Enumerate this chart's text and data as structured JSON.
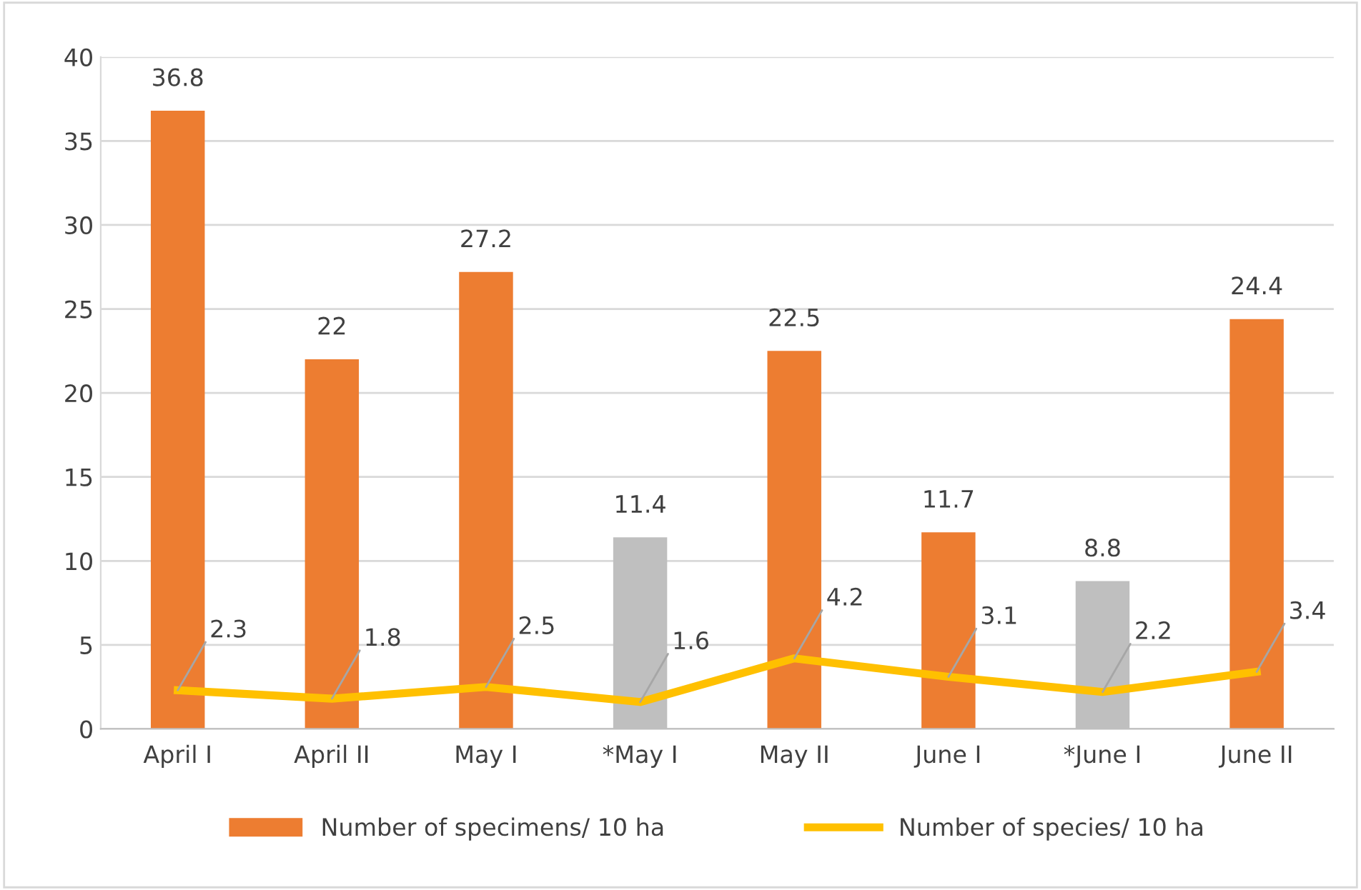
{
  "chart_data": {
    "type": "bar",
    "categories": [
      "April I",
      "April II",
      "May I",
      "*May I",
      "May II",
      "June I",
      "*June I",
      "June II"
    ],
    "series": [
      {
        "name": "Number of specimens/ 10 ha",
        "colors": [
          "#ed7d31",
          "#ed7d31",
          "#ed7d31",
          "#bfbfbf",
          "#ed7d31",
          "#ed7d31",
          "#bfbfbf",
          "#ed7d31"
        ],
        "color": "#ed7d31",
        "values": [
          36.8,
          22,
          27.2,
          11.4,
          22.5,
          11.7,
          8.8,
          24.4
        ],
        "value_labels": [
          "36.8",
          "22",
          "27.2",
          "11.4",
          "22.5",
          "11.7",
          "8.8",
          "24.4"
        ]
      },
      {
        "name": "Number of species/ 10 ha",
        "type": "line",
        "color": "#ffc000",
        "values": [
          2.3,
          1.8,
          2.5,
          1.6,
          4.2,
          3.1,
          2.2,
          3.4
        ],
        "marker": "none",
        "line_style": "solid"
      }
    ],
    "annotations": [
      {
        "text": "2.3",
        "x": "April I",
        "y": 2.3
      },
      {
        "text": "1.8",
        "x": "April II",
        "y": 1.8
      },
      {
        "text": "2.5",
        "x": "May I",
        "y": 2.5
      },
      {
        "text": "1.6",
        "x": "*May I",
        "y": 1.6
      },
      {
        "text": "4.2",
        "x": "May II",
        "y": 4.2
      },
      {
        "text": "3.1",
        "x": "June I",
        "y": 3.1
      },
      {
        "text": "2.2",
        "x": "*June I",
        "y": 2.2
      },
      {
        "text": "3.4",
        "x": "June II",
        "y": 3.4
      }
    ],
    "ylim": [
      0,
      40
    ],
    "yticks": [
      0,
      5,
      10,
      15,
      20,
      25,
      30,
      35,
      40
    ],
    "grid": "y",
    "legend": "bottom"
  }
}
